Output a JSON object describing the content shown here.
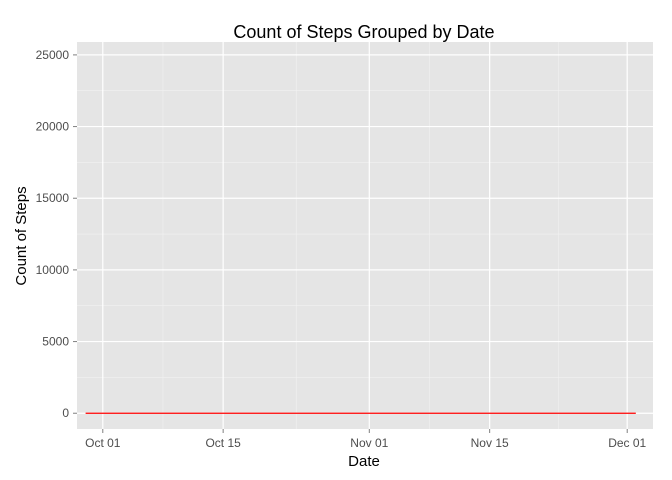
{
  "chart_data": {
    "type": "line",
    "title": "Count of Steps Grouped by Date",
    "xlabel": "Date",
    "ylabel": "Count of Steps",
    "x_ticks": [
      {
        "label": "Oct 01",
        "date": "2012-10-01"
      },
      {
        "label": "Oct 15",
        "date": "2012-10-15"
      },
      {
        "label": "Nov 01",
        "date": "2012-11-01"
      },
      {
        "label": "Nov 15",
        "date": "2012-11-15"
      },
      {
        "label": "Dec 01",
        "date": "2012-12-01"
      }
    ],
    "y_ticks": [
      0,
      5000,
      10000,
      15000,
      20000,
      25000
    ],
    "xlim": [
      "2012-09-28",
      "2012-12-04"
    ],
    "ylim": [
      -1100,
      25900
    ],
    "grid": true,
    "series": [
      {
        "color": "#ff0000",
        "points": [
          {
            "x": "2012-09-29",
            "y": 0
          },
          {
            "x": "2012-12-02",
            "y": 0
          }
        ]
      }
    ],
    "colors": {
      "panel": "#e5e5e5",
      "grid_major": "#ffffff",
      "grid_minor": "#f2f2f2",
      "line": "#ff0000"
    }
  }
}
